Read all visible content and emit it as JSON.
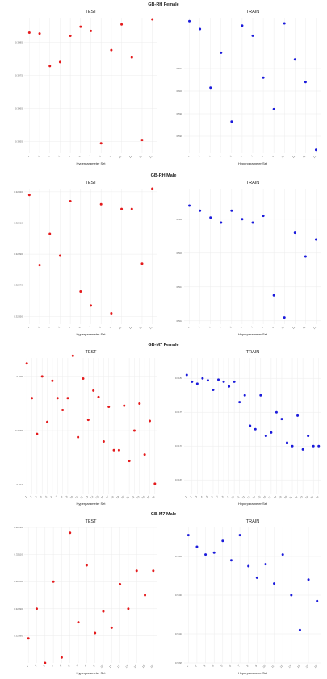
{
  "chart_data": [
    {
      "type": "scatter",
      "section_title": "GB-RH Female",
      "panels": [
        {
          "title": "TEST",
          "xlabel": "Hyperparameter Set",
          "color": "#e41a1c",
          "ylim": [
            0.39515,
            0.39925
          ],
          "yticks": [
            0.3955,
            0.3965,
            0.3975,
            0.3985
          ],
          "ytick_labels": [
            "0.3955",
            "0.3965",
            "0.3975",
            "0.3985"
          ],
          "x": [
            1,
            2,
            3,
            4,
            5,
            6,
            7,
            8,
            9,
            10,
            11,
            12,
            13
          ],
          "y": [
            0.3988,
            0.39877,
            0.39779,
            0.39791,
            0.3987,
            0.39898,
            0.39885,
            0.39545,
            0.39827,
            0.39905,
            0.39805,
            0.39555,
            0.3992
          ]
        },
        {
          "title": "TRAIN",
          "xlabel": "Hyperparameter Set",
          "color": "#1a1adb",
          "ylim": [
            0.5945,
            0.6065
          ],
          "yticks": [
            0.596,
            0.598,
            0.6,
            0.602
          ],
          "ytick_labels": [
            "0.596",
            "0.598",
            "0.600",
            "0.602"
          ],
          "x": [
            1,
            2,
            3,
            4,
            5,
            6,
            7,
            8,
            9,
            10,
            11,
            12,
            13
          ],
          "y": [
            0.6062,
            0.6055,
            0.6003,
            0.6034,
            0.5973,
            0.6058,
            0.6049,
            0.6012,
            0.5984,
            0.606,
            0.6028,
            0.6008,
            0.5948
          ]
        }
      ]
    },
    {
      "type": "scatter",
      "section_title": "GB-RH Male",
      "panels": [
        {
          "title": "TEST",
          "xlabel": "Hyperparameter Set",
          "color": "#e41a1c",
          "ylim": [
            0.32345,
            0.32432
          ],
          "yticks": [
            0.3235,
            0.3237,
            0.3239,
            0.3241,
            0.3243
          ],
          "ytick_labels": [
            "0.32350",
            "0.32370",
            "0.32390",
            "0.32410",
            "0.32430"
          ],
          "x": [
            1,
            2,
            3,
            4,
            5,
            6,
            7,
            8,
            9,
            10,
            11,
            12,
            13
          ],
          "y": [
            0.32428,
            0.32383,
            0.32403,
            0.32389,
            0.32424,
            0.32366,
            0.32357,
            0.32422,
            0.32352,
            0.32419,
            0.32419,
            0.32384,
            0.32432
          ]
        },
        {
          "title": "TRAIN",
          "xlabel": "Hyperparameter Set",
          "color": "#1a1adb",
          "ylim": [
            0.5018,
            0.5098
          ],
          "yticks": [
            0.502,
            0.504,
            0.506,
            0.508
          ],
          "ytick_labels": [
            "0.502",
            "0.504",
            "0.506",
            "0.508"
          ],
          "x": [
            1,
            2,
            3,
            4,
            5,
            6,
            7,
            8,
            9,
            10,
            11,
            12,
            13
          ],
          "y": [
            0.5088,
            0.5085,
            0.5081,
            0.5078,
            0.5085,
            0.508,
            0.5078,
            0.5082,
            0.5035,
            0.5022,
            0.5072,
            0.5058,
            0.5068
          ]
        }
      ]
    },
    {
      "type": "scatter",
      "section_title": "GB-M7 Female",
      "panels": [
        {
          "title": "TEST",
          "xlabel": "Hyperparameter Set",
          "color": "#e41a1c",
          "ylim": [
            0.32392,
            0.32517
          ],
          "yticks": [
            0.324,
            0.3245,
            0.325
          ],
          "ytick_labels": [
            "0.324",
            "0.3245",
            "0.325"
          ],
          "x": [
            1,
            2,
            3,
            4,
            5,
            6,
            7,
            8,
            9,
            10,
            11,
            12,
            13,
            14,
            15,
            16,
            17,
            18,
            19,
            20,
            21,
            22,
            23,
            24,
            25,
            26
          ],
          "y": [
            0.32512,
            0.3248,
            0.32447,
            0.325,
            0.32458,
            0.32496,
            0.3248,
            0.32469,
            0.3248,
            0.32519,
            0.32444,
            0.32498,
            0.3246,
            0.32487,
            0.32481,
            0.3244,
            0.32472,
            0.32432,
            0.32432,
            0.32473,
            0.32422,
            0.3245,
            0.32475,
            0.32428,
            0.32459,
            0.32401
          ]
        },
        {
          "title": "TRAIN",
          "xlabel": "Hyperparameter Set",
          "color": "#1a1adb",
          "ylim": [
            0.6163,
            0.6183
          ],
          "yticks": [
            0.6165,
            0.617,
            0.6175,
            0.618
          ],
          "ytick_labels": [
            "0.6165",
            "0.6170",
            "0.6175",
            "0.6180"
          ],
          "x": [
            1,
            2,
            3,
            4,
            5,
            6,
            7,
            8,
            9,
            10,
            11,
            12,
            13,
            14,
            15,
            16,
            17,
            18,
            19,
            20,
            21,
            22,
            23,
            24,
            25,
            26
          ],
          "y": [
            0.61805,
            0.61795,
            0.61792,
            0.618,
            0.61797,
            0.61783,
            0.61798,
            0.61795,
            0.61788,
            0.61795,
            0.61765,
            0.61775,
            0.6173,
            0.61725,
            0.61775,
            0.61715,
            0.6172,
            0.6175,
            0.6174,
            0.61705,
            0.617,
            0.61745,
            0.61695,
            0.61715,
            0.617,
            0.617
          ]
        }
      ]
    },
    {
      "type": "scatter",
      "section_title": "GB-M7 Male",
      "panels": [
        {
          "title": "TEST",
          "xlabel": "Hyperparameter Set",
          "color": "#e41a1c",
          "ylim": [
            0.3207,
            0.3212
          ],
          "yticks": [
            0.3208,
            0.3209,
            0.321,
            0.3211,
            0.3212
          ],
          "ytick_labels": [
            "0.32080",
            "0.32090",
            "0.32100",
            "0.32110",
            "0.32120"
          ],
          "x": [
            1,
            2,
            3,
            4,
            5,
            6,
            7,
            8,
            9,
            10,
            11,
            12,
            13,
            14,
            15,
            16
          ],
          "y": [
            0.32079,
            0.3209,
            0.3207,
            0.321,
            0.32072,
            0.32118,
            0.32085,
            0.32106,
            0.32081,
            0.32089,
            0.32083,
            0.32099,
            0.3209,
            0.32104,
            0.32095,
            0.32104
          ]
        },
        {
          "title": "TRAIN",
          "xlabel": "Hyperparameter Set",
          "color": "#1a1adb",
          "ylim": [
            0.5395,
            0.5465
          ],
          "yticks": [
            0.5395,
            0.541,
            0.543,
            0.545
          ],
          "ytick_labels": [
            "0.5395",
            "0.5410",
            "0.5430",
            "0.5450"
          ],
          "x": [
            1,
            2,
            3,
            4,
            5,
            6,
            7,
            8,
            9,
            10,
            11,
            12,
            13,
            14,
            15,
            16
          ],
          "y": [
            0.5461,
            0.5455,
            0.5451,
            0.5452,
            0.5458,
            0.5448,
            0.5461,
            0.5445,
            0.5439,
            0.5446,
            0.5436,
            0.5451,
            0.543,
            0.5412,
            0.5438,
            0.5427
          ]
        }
      ]
    }
  ]
}
